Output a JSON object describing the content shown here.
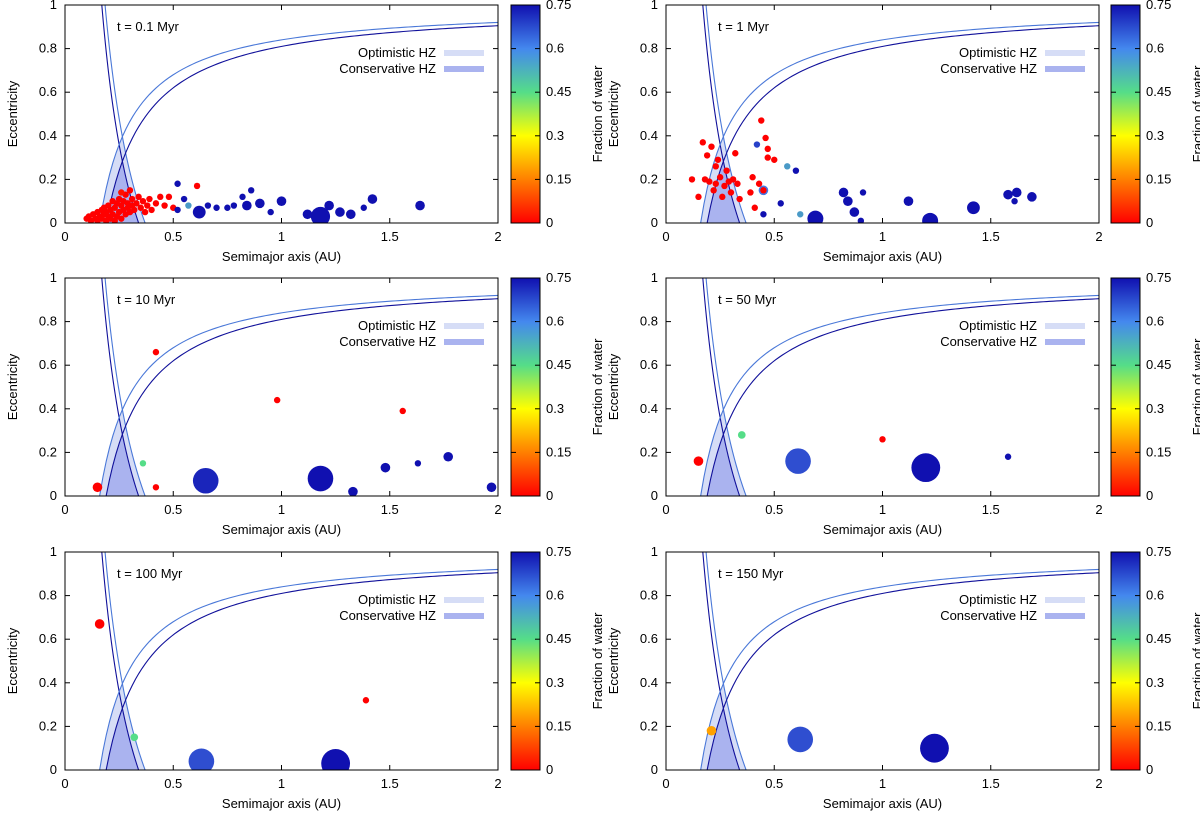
{
  "figure": {
    "xlabel": "Semimajor axis (AU)",
    "ylabel": "Eccentricity",
    "colorbar_label": "Fraction of water",
    "legend": {
      "optimistic": "Optimistic HZ",
      "conservative": "Conservative HZ"
    },
    "hz_colors": {
      "optimistic_line": "#4a78d8",
      "conservative_line": "#10109a",
      "optimistic_fill": "#d6ddf6",
      "conservative_fill": "#aab3ef"
    }
  },
  "chart_data": [
    {
      "type": "scatter",
      "title": "t = 0.1 Myr",
      "xlim": [
        0,
        2
      ],
      "ylim": [
        0,
        1
      ],
      "xticks": [
        "0",
        "0.5",
        "1",
        "1.5",
        "2"
      ],
      "yticks": [
        "0",
        "0.2",
        "0.4",
        "0.6",
        "0.8",
        "1"
      ],
      "colorbar": {
        "range": [
          0,
          0.75
        ],
        "ticks": [
          "0",
          "0.15",
          "0.3",
          "0.45",
          "0.6",
          "0.75"
        ]
      },
      "points": [
        {
          "a": 0.1,
          "e": 0.02,
          "w": 0,
          "s": 1
        },
        {
          "a": 0.11,
          "e": 0.03,
          "w": 0,
          "s": 1
        },
        {
          "a": 0.12,
          "e": 0.01,
          "w": 0,
          "s": 1
        },
        {
          "a": 0.13,
          "e": 0.04,
          "w": 0,
          "s": 1
        },
        {
          "a": 0.14,
          "e": 0.02,
          "w": 0,
          "s": 1
        },
        {
          "a": 0.15,
          "e": 0.05,
          "w": 0,
          "s": 1
        },
        {
          "a": 0.15,
          "e": 0.01,
          "w": 0,
          "s": 1
        },
        {
          "a": 0.16,
          "e": 0.03,
          "w": 0,
          "s": 1
        },
        {
          "a": 0.17,
          "e": 0.06,
          "w": 0,
          "s": 1
        },
        {
          "a": 0.17,
          "e": 0.02,
          "w": 0,
          "s": 1
        },
        {
          "a": 0.18,
          "e": 0.04,
          "w": 0,
          "s": 1
        },
        {
          "a": 0.18,
          "e": 0.07,
          "w": 0,
          "s": 1
        },
        {
          "a": 0.19,
          "e": 0.01,
          "w": 0,
          "s": 1
        },
        {
          "a": 0.19,
          "e": 0.05,
          "w": 0,
          "s": 1
        },
        {
          "a": 0.2,
          "e": 0.03,
          "w": 0,
          "s": 1
        },
        {
          "a": 0.2,
          "e": 0.08,
          "w": 0,
          "s": 1
        },
        {
          "a": 0.21,
          "e": 0.02,
          "w": 0,
          "s": 1
        },
        {
          "a": 0.21,
          "e": 0.06,
          "w": 0,
          "s": 1
        },
        {
          "a": 0.22,
          "e": 0.1,
          "w": 0,
          "s": 1
        },
        {
          "a": 0.22,
          "e": 0.04,
          "w": 0,
          "s": 1
        },
        {
          "a": 0.23,
          "e": 0.01,
          "w": 0,
          "s": 1
        },
        {
          "a": 0.23,
          "e": 0.07,
          "w": 0,
          "s": 1
        },
        {
          "a": 0.24,
          "e": 0.09,
          "w": 0,
          "s": 1
        },
        {
          "a": 0.24,
          "e": 0.03,
          "w": 0,
          "s": 1
        },
        {
          "a": 0.25,
          "e": 0.05,
          "w": 0,
          "s": 1
        },
        {
          "a": 0.25,
          "e": 0.11,
          "w": 0,
          "s": 1
        },
        {
          "a": 0.26,
          "e": 0.08,
          "w": 0,
          "s": 1
        },
        {
          "a": 0.26,
          "e": 0.02,
          "w": 0,
          "s": 1
        },
        {
          "a": 0.27,
          "e": 0.06,
          "w": 0,
          "s": 1
        },
        {
          "a": 0.27,
          "e": 0.1,
          "w": 0,
          "s": 1
        },
        {
          "a": 0.28,
          "e": 0.04,
          "w": 0,
          "s": 1
        },
        {
          "a": 0.28,
          "e": 0.13,
          "w": 0,
          "s": 1
        },
        {
          "a": 0.29,
          "e": 0.07,
          "w": 0,
          "s": 1
        },
        {
          "a": 0.29,
          "e": 0.09,
          "w": 0,
          "s": 1
        },
        {
          "a": 0.3,
          "e": 0.05,
          "w": 0,
          "s": 1
        },
        {
          "a": 0.3,
          "e": 0.15,
          "w": 0,
          "s": 1
        },
        {
          "a": 0.31,
          "e": 0.08,
          "w": 0,
          "s": 1
        },
        {
          "a": 0.31,
          "e": 0.11,
          "w": 0,
          "s": 1
        },
        {
          "a": 0.32,
          "e": 0.06,
          "w": 0,
          "s": 1
        },
        {
          "a": 0.33,
          "e": 0.09,
          "w": 0,
          "s": 1
        },
        {
          "a": 0.34,
          "e": 0.12,
          "w": 0,
          "s": 1
        },
        {
          "a": 0.35,
          "e": 0.07,
          "w": 0,
          "s": 1
        },
        {
          "a": 0.36,
          "e": 0.1,
          "w": 0,
          "s": 1
        },
        {
          "a": 0.37,
          "e": 0.05,
          "w": 0,
          "s": 1
        },
        {
          "a": 0.38,
          "e": 0.08,
          "w": 0,
          "s": 1
        },
        {
          "a": 0.39,
          "e": 0.11,
          "w": 0,
          "s": 1
        },
        {
          "a": 0.4,
          "e": 0.06,
          "w": 0,
          "s": 1
        },
        {
          "a": 0.42,
          "e": 0.09,
          "w": 0,
          "s": 1
        },
        {
          "a": 0.44,
          "e": 0.12,
          "w": 0,
          "s": 1
        },
        {
          "a": 0.46,
          "e": 0.08,
          "w": 0,
          "s": 1
        },
        {
          "a": 0.48,
          "e": 0.12,
          "w": 0,
          "s": 1
        },
        {
          "a": 0.5,
          "e": 0.07,
          "w": 0,
          "s": 1
        },
        {
          "a": 0.61,
          "e": 0.17,
          "w": 0,
          "s": 1
        },
        {
          "a": 0.26,
          "e": 0.14,
          "w": 0.02,
          "s": 1
        },
        {
          "a": 0.57,
          "e": 0.08,
          "w": 0.55,
          "s": 1
        },
        {
          "a": 0.52,
          "e": 0.18,
          "w": 0.75,
          "s": 1
        },
        {
          "a": 0.52,
          "e": 0.06,
          "w": 0.75,
          "s": 1
        },
        {
          "a": 0.55,
          "e": 0.11,
          "w": 0.75,
          "s": 1
        },
        {
          "a": 0.62,
          "e": 0.05,
          "w": 0.75,
          "s": 2
        },
        {
          "a": 0.66,
          "e": 0.08,
          "w": 0.75,
          "s": 1
        },
        {
          "a": 0.7,
          "e": 0.07,
          "w": 0.75,
          "s": 1
        },
        {
          "a": 0.75,
          "e": 0.07,
          "w": 0.75,
          "s": 1
        },
        {
          "a": 0.78,
          "e": 0.08,
          "w": 0.75,
          "s": 1
        },
        {
          "a": 0.82,
          "e": 0.12,
          "w": 0.75,
          "s": 1
        },
        {
          "a": 0.84,
          "e": 0.08,
          "w": 0.75,
          "s": 1.5
        },
        {
          "a": 0.86,
          "e": 0.15,
          "w": 0.75,
          "s": 1
        },
        {
          "a": 0.9,
          "e": 0.09,
          "w": 0.75,
          "s": 1.5
        },
        {
          "a": 0.95,
          "e": 0.05,
          "w": 0.75,
          "s": 1
        },
        {
          "a": 1.0,
          "e": 0.1,
          "w": 0.75,
          "s": 1.5
        },
        {
          "a": 1.12,
          "e": 0.04,
          "w": 0.75,
          "s": 1.5
        },
        {
          "a": 1.18,
          "e": 0.03,
          "w": 0.75,
          "s": 3
        },
        {
          "a": 1.22,
          "e": 0.08,
          "w": 0.75,
          "s": 1.5
        },
        {
          "a": 1.27,
          "e": 0.05,
          "w": 0.75,
          "s": 1.5
        },
        {
          "a": 1.32,
          "e": 0.04,
          "w": 0.75,
          "s": 1.5
        },
        {
          "a": 1.38,
          "e": 0.07,
          "w": 0.75,
          "s": 1
        },
        {
          "a": 1.42,
          "e": 0.11,
          "w": 0.75,
          "s": 1.5
        },
        {
          "a": 1.64,
          "e": 0.08,
          "w": 0.75,
          "s": 1.5
        }
      ]
    },
    {
      "type": "scatter",
      "title": "t = 1 Myr",
      "xlim": [
        0,
        2
      ],
      "ylim": [
        0,
        1
      ],
      "xticks": [
        "0",
        "0.5",
        "1",
        "1.5",
        "2"
      ],
      "yticks": [
        "0",
        "0.2",
        "0.4",
        "0.6",
        "0.8",
        "1"
      ],
      "colorbar": {
        "range": [
          0,
          0.75
        ],
        "ticks": [
          "0",
          "0.15",
          "0.3",
          "0.45",
          "0.6",
          "0.75"
        ]
      },
      "points": [
        {
          "a": 0.12,
          "e": 0.2,
          "w": 0,
          "s": 1
        },
        {
          "a": 0.15,
          "e": 0.12,
          "w": 0,
          "s": 1
        },
        {
          "a": 0.17,
          "e": 0.37,
          "w": 0,
          "s": 1
        },
        {
          "a": 0.18,
          "e": 0.2,
          "w": 0,
          "s": 1
        },
        {
          "a": 0.19,
          "e": 0.31,
          "w": 0,
          "s": 1
        },
        {
          "a": 0.2,
          "e": 0.19,
          "w": 0,
          "s": 1
        },
        {
          "a": 0.21,
          "e": 0.35,
          "w": 0,
          "s": 1
        },
        {
          "a": 0.22,
          "e": 0.15,
          "w": 0,
          "s": 1
        },
        {
          "a": 0.23,
          "e": 0.26,
          "w": 0,
          "s": 1
        },
        {
          "a": 0.23,
          "e": 0.18,
          "w": 0,
          "s": 1
        },
        {
          "a": 0.24,
          "e": 0.29,
          "w": 0,
          "s": 1
        },
        {
          "a": 0.25,
          "e": 0.21,
          "w": 0,
          "s": 1
        },
        {
          "a": 0.26,
          "e": 0.12,
          "w": 0,
          "s": 1
        },
        {
          "a": 0.27,
          "e": 0.17,
          "w": 0,
          "s": 1
        },
        {
          "a": 0.28,
          "e": 0.24,
          "w": 0,
          "s": 1
        },
        {
          "a": 0.29,
          "e": 0.19,
          "w": 0,
          "s": 1
        },
        {
          "a": 0.3,
          "e": 0.14,
          "w": 0,
          "s": 1
        },
        {
          "a": 0.31,
          "e": 0.2,
          "w": 0,
          "s": 1
        },
        {
          "a": 0.32,
          "e": 0.32,
          "w": 0,
          "s": 1
        },
        {
          "a": 0.33,
          "e": 0.18,
          "w": 0,
          "s": 1
        },
        {
          "a": 0.34,
          "e": 0.11,
          "w": 0,
          "s": 1
        },
        {
          "a": 0.39,
          "e": 0.14,
          "w": 0,
          "s": 1
        },
        {
          "a": 0.4,
          "e": 0.21,
          "w": 0,
          "s": 1
        },
        {
          "a": 0.41,
          "e": 0.07,
          "w": 0,
          "s": 1
        },
        {
          "a": 0.43,
          "e": 0.18,
          "w": 0,
          "s": 1
        },
        {
          "a": 0.44,
          "e": 0.47,
          "w": 0,
          "s": 1
        },
        {
          "a": 0.45,
          "e": 0.15,
          "w": 0,
          "s": 1
        },
        {
          "a": 0.46,
          "e": 0.39,
          "w": 0,
          "s": 1
        },
        {
          "a": 0.47,
          "e": 0.3,
          "w": 0,
          "s": 1
        },
        {
          "a": 0.47,
          "e": 0.34,
          "w": 0,
          "s": 1
        },
        {
          "a": 0.5,
          "e": 0.29,
          "w": 0,
          "s": 1
        },
        {
          "a": 0.42,
          "e": 0.36,
          "w": 0.68,
          "s": 1
        },
        {
          "a": 0.45,
          "e": 0.15,
          "w": 0.6,
          "s": 1.5
        },
        {
          "a": 0.56,
          "e": 0.26,
          "w": 0.55,
          "s": 1
        },
        {
          "a": 0.62,
          "e": 0.04,
          "w": 0.55,
          "s": 1
        },
        {
          "a": 0.45,
          "e": 0.04,
          "w": 0.75,
          "s": 1
        },
        {
          "a": 0.53,
          "e": 0.09,
          "w": 0.75,
          "s": 1
        },
        {
          "a": 0.6,
          "e": 0.24,
          "w": 0.75,
          "s": 1
        },
        {
          "a": 0.69,
          "e": 0.02,
          "w": 0.75,
          "s": 2.5
        },
        {
          "a": 0.82,
          "e": 0.14,
          "w": 0.75,
          "s": 1.5
        },
        {
          "a": 0.84,
          "e": 0.1,
          "w": 0.75,
          "s": 1.5
        },
        {
          "a": 0.87,
          "e": 0.05,
          "w": 0.75,
          "s": 1.5
        },
        {
          "a": 0.9,
          "e": 0.01,
          "w": 0.75,
          "s": 1
        },
        {
          "a": 0.91,
          "e": 0.14,
          "w": 0.75,
          "s": 1
        },
        {
          "a": 1.12,
          "e": 0.1,
          "w": 0.75,
          "s": 1.5
        },
        {
          "a": 1.22,
          "e": 0.01,
          "w": 0.75,
          "s": 2.5
        },
        {
          "a": 1.42,
          "e": 0.07,
          "w": 0.75,
          "s": 2
        },
        {
          "a": 1.58,
          "e": 0.13,
          "w": 0.75,
          "s": 1.5
        },
        {
          "a": 1.61,
          "e": 0.1,
          "w": 0.75,
          "s": 1
        },
        {
          "a": 1.62,
          "e": 0.14,
          "w": 0.75,
          "s": 1.5
        },
        {
          "a": 1.69,
          "e": 0.12,
          "w": 0.75,
          "s": 1.5
        }
      ]
    },
    {
      "type": "scatter",
      "title": "t = 10 Myr",
      "xlim": [
        0,
        2
      ],
      "ylim": [
        0,
        1
      ],
      "xticks": [
        "0",
        "0.5",
        "1",
        "1.5",
        "2"
      ],
      "yticks": [
        "0",
        "0.2",
        "0.4",
        "0.6",
        "0.8",
        "1"
      ],
      "colorbar": {
        "range": [
          0,
          0.75
        ],
        "ticks": [
          "0",
          "0.15",
          "0.3",
          "0.45",
          "0.6",
          "0.75"
        ]
      },
      "points": [
        {
          "a": 0.15,
          "e": 0.04,
          "w": 0,
          "s": 1.5
        },
        {
          "a": 0.42,
          "e": 0.66,
          "w": 0,
          "s": 1
        },
        {
          "a": 0.42,
          "e": 0.04,
          "w": 0,
          "s": 1
        },
        {
          "a": 0.98,
          "e": 0.44,
          "w": 0,
          "s": 1
        },
        {
          "a": 1.56,
          "e": 0.39,
          "w": 0,
          "s": 1
        },
        {
          "a": 0.36,
          "e": 0.15,
          "w": 0.45,
          "s": 1
        },
        {
          "a": 0.65,
          "e": 0.07,
          "w": 0.72,
          "s": 4
        },
        {
          "a": 1.18,
          "e": 0.08,
          "w": 0.75,
          "s": 4
        },
        {
          "a": 1.33,
          "e": 0.02,
          "w": 0.75,
          "s": 1.5
        },
        {
          "a": 1.48,
          "e": 0.13,
          "w": 0.75,
          "s": 1.5
        },
        {
          "a": 1.63,
          "e": 0.15,
          "w": 0.75,
          "s": 1
        },
        {
          "a": 1.77,
          "e": 0.18,
          "w": 0.75,
          "s": 1.5
        },
        {
          "a": 1.97,
          "e": 0.04,
          "w": 0.75,
          "s": 1.5
        }
      ]
    },
    {
      "type": "scatter",
      "title": "t = 50 Myr",
      "xlim": [
        0,
        2
      ],
      "ylim": [
        0,
        1
      ],
      "xticks": [
        "0",
        "0.5",
        "1",
        "1.5",
        "2"
      ],
      "yticks": [
        "0",
        "0.2",
        "0.4",
        "0.6",
        "0.8",
        "1"
      ],
      "colorbar": {
        "range": [
          0,
          0.75
        ],
        "ticks": [
          "0",
          "0.15",
          "0.3",
          "0.45",
          "0.6",
          "0.75"
        ]
      },
      "points": [
        {
          "a": 0.15,
          "e": 0.16,
          "w": 0,
          "s": 1.5
        },
        {
          "a": 1.0,
          "e": 0.26,
          "w": 0,
          "s": 1
        },
        {
          "a": 0.35,
          "e": 0.28,
          "w": 0.45,
          "s": 1.2
        },
        {
          "a": 0.61,
          "e": 0.16,
          "w": 0.66,
          "s": 4
        },
        {
          "a": 1.2,
          "e": 0.13,
          "w": 0.75,
          "s": 4.5
        },
        {
          "a": 1.58,
          "e": 0.18,
          "w": 0.75,
          "s": 1
        }
      ]
    },
    {
      "type": "scatter",
      "title": "t = 100 Myr",
      "xlim": [
        0,
        2
      ],
      "ylim": [
        0,
        1
      ],
      "xticks": [
        "0",
        "0.5",
        "1",
        "1.5",
        "2"
      ],
      "yticks": [
        "0",
        "0.2",
        "0.4",
        "0.6",
        "0.8",
        "1"
      ],
      "colorbar": {
        "range": [
          0,
          0.75
        ],
        "ticks": [
          "0",
          "0.15",
          "0.3",
          "0.45",
          "0.6",
          "0.75"
        ]
      },
      "points": [
        {
          "a": 0.16,
          "e": 0.67,
          "w": 0,
          "s": 1.5
        },
        {
          "a": 1.39,
          "e": 0.32,
          "w": 0,
          "s": 1
        },
        {
          "a": 0.32,
          "e": 0.15,
          "w": 0.45,
          "s": 1.2
        },
        {
          "a": 0.63,
          "e": 0.04,
          "w": 0.66,
          "s": 4
        },
        {
          "a": 1.25,
          "e": 0.03,
          "w": 0.75,
          "s": 4.5
        }
      ]
    },
    {
      "type": "scatter",
      "title": "t = 150 Myr",
      "xlim": [
        0,
        2
      ],
      "ylim": [
        0,
        1
      ],
      "xticks": [
        "0",
        "0.5",
        "1",
        "1.5",
        "2"
      ],
      "yticks": [
        "0",
        "0.2",
        "0.4",
        "0.6",
        "0.8",
        "1"
      ],
      "colorbar": {
        "range": [
          0,
          0.75
        ],
        "ticks": [
          "0",
          "0.15",
          "0.3",
          "0.45",
          "0.6",
          "0.75"
        ]
      },
      "points": [
        {
          "a": 0.21,
          "e": 0.18,
          "w": 0.2,
          "s": 1.5
        },
        {
          "a": 0.62,
          "e": 0.14,
          "w": 0.66,
          "s": 4
        },
        {
          "a": 1.24,
          "e": 0.1,
          "w": 0.75,
          "s": 4.5
        }
      ]
    }
  ]
}
